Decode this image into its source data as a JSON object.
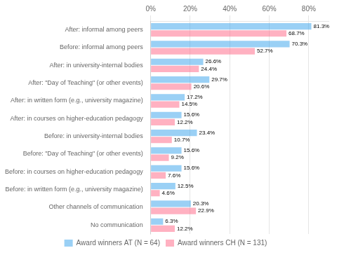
{
  "chart_data": {
    "type": "bar",
    "orientation": "horizontal",
    "categories": [
      "After: informal among peers",
      "Before: informal among peers",
      "After: in university-internal bodies",
      "After: \"Day of Teaching\" (or other events)",
      "After: in written form (e.g., university magazine)",
      "After: in courses on higher-education pedagogy",
      "Before: in university-internal bodies",
      "Before: \"Day of Teaching\" (or other events)",
      "Before: in courses on higher-education pedagogy",
      "Before: in written form (e.g., university magazine)",
      "Other channels of communication",
      "No communication"
    ],
    "series": [
      {
        "name": "Award winners AT (N = 64)",
        "values": [
          81.3,
          70.3,
          26.6,
          29.7,
          17.2,
          15.6,
          23.4,
          15.6,
          15.6,
          12.5,
          20.3,
          6.3
        ],
        "value_labels": [
          "81.3%",
          "70.3%",
          "26.6%",
          "29.7%",
          "17.2%",
          "15.6%",
          "23.4%",
          "15.6%",
          "15.6%",
          "12.5%",
          "20.3%",
          "6.3%"
        ]
      },
      {
        "name": "Award winners CH (N = 131)",
        "values": [
          68.7,
          52.7,
          24.4,
          20.6,
          14.5,
          12.2,
          10.7,
          9.2,
          7.6,
          4.6,
          22.9,
          12.2
        ],
        "value_labels": [
          "68.7%",
          "52.7%",
          "24.4%",
          "20.6%",
          "14.5%",
          "12.2%",
          "10.7%",
          "9.2%",
          "7.6%",
          "4.6%",
          "22.9%",
          "12.2%"
        ]
      }
    ],
    "xlim": [
      0,
      90
    ],
    "xticks": [
      {
        "value": 0,
        "label": "0%"
      },
      {
        "value": 20,
        "label": "20%"
      },
      {
        "value": 40,
        "label": "40%"
      },
      {
        "value": 60,
        "label": "60%"
      },
      {
        "value": 80,
        "label": "80%"
      }
    ],
    "grid": true,
    "data_labels": true,
    "legend": "bottom"
  }
}
